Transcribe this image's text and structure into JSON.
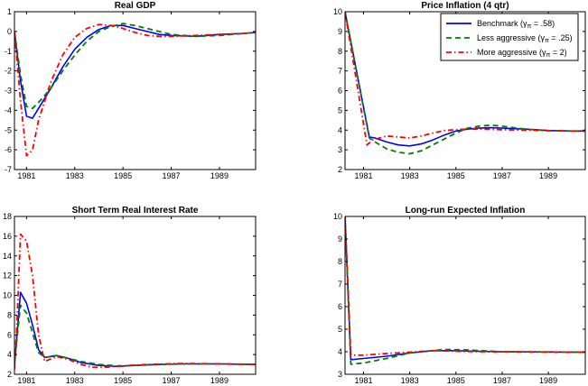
{
  "chart_data": {
    "legend": {
      "placement": "top-right of Price Inflation (4 qtr) panel",
      "series": [
        {
          "name": "Benchmark (γπ = .58)",
          "color": "#0000ff",
          "style": "solid"
        },
        {
          "name": "Less aggressive (γπ = .25)",
          "color": "#008000",
          "style": "dashed"
        },
        {
          "name": "More aggressive (γπ = 2)",
          "color": "#ff0000",
          "style": "dash-dot"
        }
      ]
    },
    "panels": [
      {
        "type": "line",
        "title": "Real GDP",
        "grid": false,
        "xlim": [
          1980.5,
          1990.5
        ],
        "ylim": [
          -7,
          1
        ],
        "xticks": [
          1981,
          1983,
          1985,
          1987,
          1989
        ],
        "yticks": [
          -7,
          -6,
          -5,
          -4,
          -3,
          -2,
          -1,
          0,
          1
        ],
        "series": [
          [
            [
              1980.5,
              0
            ],
            [
              1980.75,
              -2.5
            ],
            [
              1981,
              -4.3
            ],
            [
              1981.25,
              -4.4
            ],
            [
              1981.5,
              -3.9
            ],
            [
              1982,
              -2.9
            ],
            [
              1982.5,
              -1.8
            ],
            [
              1983,
              -0.9
            ],
            [
              1983.5,
              -0.3
            ],
            [
              1984,
              0.1
            ],
            [
              1984.5,
              0.3
            ],
            [
              1985,
              0.3
            ],
            [
              1985.5,
              0.15
            ],
            [
              1986,
              0
            ],
            [
              1986.5,
              -0.15
            ],
            [
              1987,
              -0.2
            ],
            [
              1988,
              -0.25
            ],
            [
              1989,
              -0.15
            ],
            [
              1990,
              -0.1
            ],
            [
              1990.5,
              -0.05
            ]
          ],
          [
            [
              1980.5,
              0
            ],
            [
              1980.75,
              -2.2
            ],
            [
              1981,
              -3.8
            ],
            [
              1981.25,
              -3.9
            ],
            [
              1981.5,
              -3.6
            ],
            [
              1982,
              -2.9
            ],
            [
              1982.5,
              -2.0
            ],
            [
              1983,
              -1.2
            ],
            [
              1983.5,
              -0.5
            ],
            [
              1984,
              0
            ],
            [
              1984.5,
              0.25
            ],
            [
              1985,
              0.4
            ],
            [
              1985.5,
              0.3
            ],
            [
              1986,
              0.15
            ],
            [
              1986.5,
              0
            ],
            [
              1987,
              -0.15
            ],
            [
              1988,
              -0.25
            ],
            [
              1989,
              -0.2
            ],
            [
              1990,
              -0.1
            ],
            [
              1990.5,
              -0.05
            ]
          ],
          [
            [
              1980.5,
              0
            ],
            [
              1980.75,
              -3.5
            ],
            [
              1981,
              -6.3
            ],
            [
              1981.25,
              -6.0
            ],
            [
              1981.5,
              -4.5
            ],
            [
              1982,
              -2.6
            ],
            [
              1982.5,
              -1.2
            ],
            [
              1983,
              -0.3
            ],
            [
              1983.5,
              0.15
            ],
            [
              1984,
              0.35
            ],
            [
              1984.5,
              0.3
            ],
            [
              1985,
              0.15
            ],
            [
              1985.5,
              -0.05
            ],
            [
              1986,
              -0.2
            ],
            [
              1986.5,
              -0.25
            ],
            [
              1987,
              -0.25
            ],
            [
              1988,
              -0.2
            ],
            [
              1989,
              -0.15
            ],
            [
              1990,
              -0.1
            ],
            [
              1990.5,
              -0.05
            ]
          ]
        ]
      },
      {
        "type": "line",
        "title": "Price Inflation (4 qtr)",
        "grid": false,
        "xlim": [
          1980.2,
          1990.6
        ],
        "ylim": [
          2,
          10
        ],
        "xticks": [
          1981,
          1983,
          1985,
          1987,
          1989
        ],
        "yticks": [
          2,
          3,
          4,
          5,
          6,
          7,
          8,
          9,
          10
        ],
        "series": [
          [
            [
              1980.2,
              10
            ],
            [
              1981.25,
              3.65
            ],
            [
              1981.5,
              3.6
            ],
            [
              1982,
              3.4
            ],
            [
              1982.5,
              3.25
            ],
            [
              1983,
              3.2
            ],
            [
              1983.5,
              3.3
            ],
            [
              1984,
              3.5
            ],
            [
              1984.5,
              3.75
            ],
            [
              1985,
              3.95
            ],
            [
              1985.5,
              4.05
            ],
            [
              1986,
              4.1
            ],
            [
              1986.5,
              4.12
            ],
            [
              1987,
              4.1
            ],
            [
              1988,
              4.05
            ],
            [
              1989,
              3.98
            ],
            [
              1990,
              3.95
            ],
            [
              1990.6,
              3.95
            ]
          ],
          [
            [
              1980.2,
              10
            ],
            [
              1981.25,
              3.6
            ],
            [
              1981.5,
              3.4
            ],
            [
              1982,
              3.05
            ],
            [
              1982.5,
              2.88
            ],
            [
              1983,
              2.8
            ],
            [
              1983.5,
              2.95
            ],
            [
              1984,
              3.25
            ],
            [
              1984.5,
              3.55
            ],
            [
              1985,
              3.85
            ],
            [
              1985.5,
              4.1
            ],
            [
              1986,
              4.2
            ],
            [
              1986.5,
              4.25
            ],
            [
              1987,
              4.2
            ],
            [
              1988,
              4.05
            ],
            [
              1989,
              3.97
            ],
            [
              1990,
              3.95
            ],
            [
              1990.6,
              3.95
            ]
          ],
          [
            [
              1980.2,
              10
            ],
            [
              1981.15,
              3.25
            ],
            [
              1981.4,
              3.5
            ],
            [
              1982,
              3.7
            ],
            [
              1982.5,
              3.65
            ],
            [
              1983,
              3.6
            ],
            [
              1983.5,
              3.7
            ],
            [
              1984,
              3.85
            ],
            [
              1984.5,
              3.98
            ],
            [
              1985,
              4.02
            ],
            [
              1985.5,
              4.05
            ],
            [
              1986,
              4.05
            ],
            [
              1987,
              4.02
            ],
            [
              1988,
              4.0
            ],
            [
              1989,
              3.97
            ],
            [
              1990,
              3.95
            ],
            [
              1990.6,
              3.95
            ]
          ]
        ]
      },
      {
        "type": "line",
        "title": "Short Term Real Interest Rate",
        "grid": false,
        "xlim": [
          1980.5,
          1990.5
        ],
        "ylim": [
          2,
          18
        ],
        "xticks": [
          1981,
          1983,
          1985,
          1987,
          1989
        ],
        "yticks": [
          2,
          4,
          6,
          8,
          10,
          12,
          14,
          16,
          18
        ],
        "series": [
          [
            [
              1980.5,
              2.8
            ],
            [
              1980.75,
              10.3
            ],
            [
              1981,
              9.2
            ],
            [
              1981.25,
              7
            ],
            [
              1981.5,
              4.5
            ],
            [
              1981.75,
              3.7
            ],
            [
              1982.25,
              3.9
            ],
            [
              1982.75,
              3.6
            ],
            [
              1983.25,
              3.2
            ],
            [
              1984,
              2.9
            ],
            [
              1984.75,
              2.8
            ],
            [
              1985.5,
              2.9
            ],
            [
              1986.5,
              3.0
            ],
            [
              1987.5,
              3.05
            ],
            [
              1989,
              3.05
            ],
            [
              1990.5,
              3.0
            ]
          ],
          [
            [
              1980.5,
              3.2
            ],
            [
              1980.75,
              9.0
            ],
            [
              1981,
              8.2
            ],
            [
              1981.25,
              6.2
            ],
            [
              1981.5,
              4.2
            ],
            [
              1981.75,
              3.7
            ],
            [
              1982.25,
              3.9
            ],
            [
              1982.75,
              3.6
            ],
            [
              1983.25,
              3.3
            ],
            [
              1984,
              3.0
            ],
            [
              1984.75,
              2.85
            ],
            [
              1985.5,
              2.9
            ],
            [
              1986.5,
              3.0
            ],
            [
              1987.5,
              3.05
            ],
            [
              1989,
              3.05
            ],
            [
              1990.5,
              3.0
            ]
          ],
          [
            [
              1980.5,
              2.5
            ],
            [
              1980.6,
              7
            ],
            [
              1980.75,
              16.2
            ],
            [
              1981,
              15.5
            ],
            [
              1981.25,
              12
            ],
            [
              1981.5,
              6
            ],
            [
              1981.75,
              3.3
            ],
            [
              1982.25,
              3.8
            ],
            [
              1982.75,
              3.5
            ],
            [
              1983.25,
              3.0
            ],
            [
              1983.75,
              2.7
            ],
            [
              1984.25,
              2.7
            ],
            [
              1985,
              2.85
            ],
            [
              1986,
              3.0
            ],
            [
              1987.5,
              3.1
            ],
            [
              1989,
              3.05
            ],
            [
              1990.5,
              3.0
            ]
          ]
        ]
      },
      {
        "type": "line",
        "title": "Long-run Expected Inflation",
        "grid": false,
        "xlim": [
          1980.2,
          1990.6
        ],
        "ylim": [
          3,
          10
        ],
        "xticks": [
          1981,
          1983,
          1985,
          1987,
          1989
        ],
        "yticks": [
          3,
          4,
          5,
          6,
          7,
          8,
          9,
          10
        ],
        "series": [
          [
            [
              1980.2,
              10
            ],
            [
              1980.45,
              3.65
            ],
            [
              1981,
              3.7
            ],
            [
              1982,
              3.8
            ],
            [
              1983,
              3.95
            ],
            [
              1984,
              4.05
            ],
            [
              1985,
              4.05
            ],
            [
              1986,
              4.02
            ],
            [
              1987,
              4.0
            ],
            [
              1990.6,
              3.98
            ]
          ],
          [
            [
              1980.2,
              10
            ],
            [
              1980.45,
              3.45
            ],
            [
              1981,
              3.5
            ],
            [
              1982,
              3.7
            ],
            [
              1983,
              3.95
            ],
            [
              1984,
              4.05
            ],
            [
              1984.5,
              4.1
            ],
            [
              1985.5,
              4.08
            ],
            [
              1987,
              4.0
            ],
            [
              1990.6,
              3.98
            ]
          ],
          [
            [
              1980.2,
              10
            ],
            [
              1980.45,
              3.85
            ],
            [
              1981,
              3.85
            ],
            [
              1982,
              3.92
            ],
            [
              1983,
              3.98
            ],
            [
              1984,
              4.05
            ],
            [
              1985,
              4.02
            ],
            [
              1986,
              4.0
            ],
            [
              1990.6,
              3.98
            ]
          ]
        ]
      }
    ]
  }
}
